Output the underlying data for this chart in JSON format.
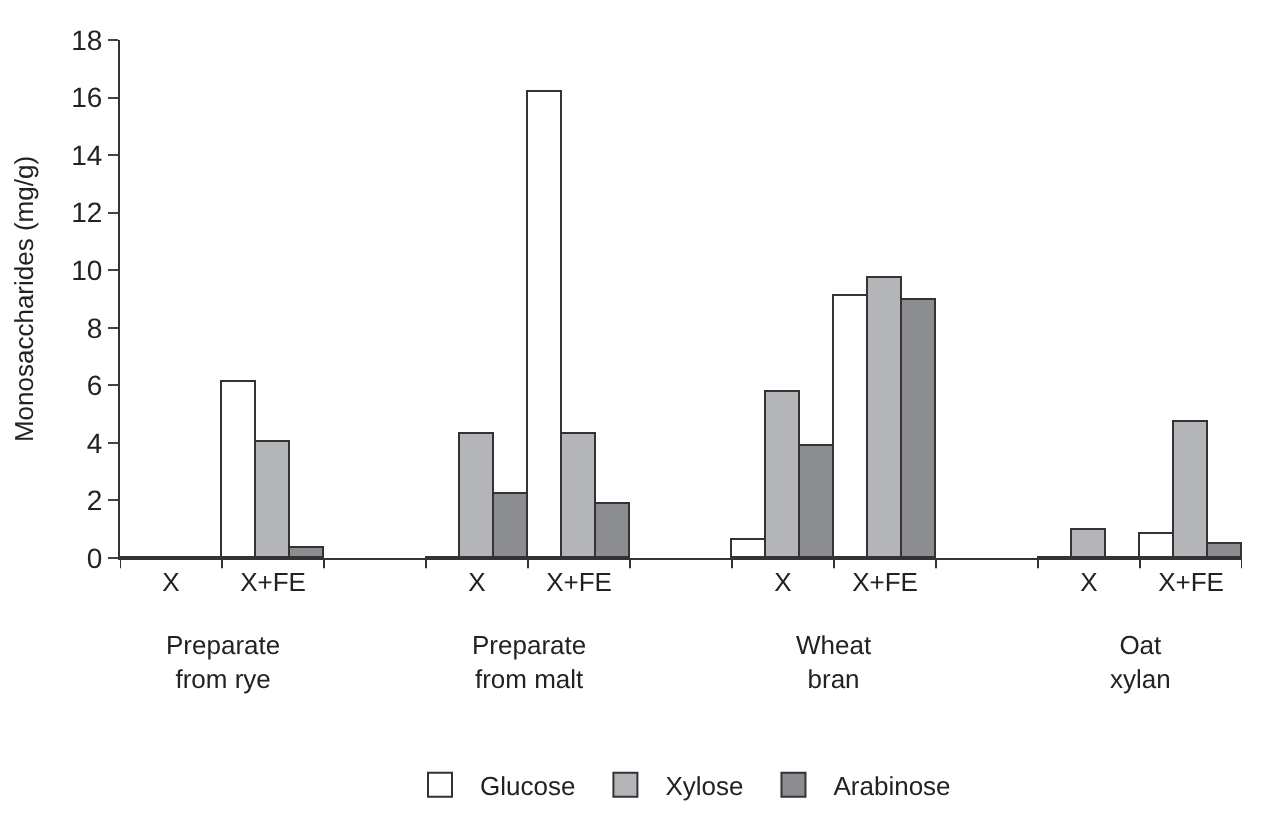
{
  "chart_data": {
    "type": "bar",
    "ylabel": "Monosaccharides (mg/g)",
    "categories": [
      "X",
      "X+FE",
      null,
      "X",
      "X+FE",
      null,
      "X",
      "X+FE",
      null,
      "X",
      "X+FE"
    ],
    "series": [
      {
        "name": "Glucose",
        "color": "#ffffff",
        "values": [
          0,
          6.1,
          null,
          0,
          16.2,
          null,
          0.6,
          9.1,
          null,
          0,
          0.8
        ]
      },
      {
        "name": "Xylose",
        "color": "#b4b5b8",
        "values": [
          0,
          4.0,
          null,
          4.3,
          4.3,
          null,
          5.8,
          9.7,
          null,
          1.0,
          4.7
        ]
      },
      {
        "name": "Arabinose",
        "color": "#8c8d90",
        "values": [
          0,
          0.35,
          null,
          2.2,
          1.9,
          null,
          3.9,
          9.0,
          null,
          0,
          0.5
        ]
      }
    ],
    "annotations": [
      "Preparate\nfrom rye",
      "Preparate\nfrom malt",
      "Wheat\nbran",
      "Oat\nxylan"
    ],
    "ylim": [
      0,
      18
    ],
    "yticks": [
      0,
      2,
      4,
      6,
      8,
      10,
      12,
      14,
      16,
      18
    ],
    "legend": "bottom"
  }
}
